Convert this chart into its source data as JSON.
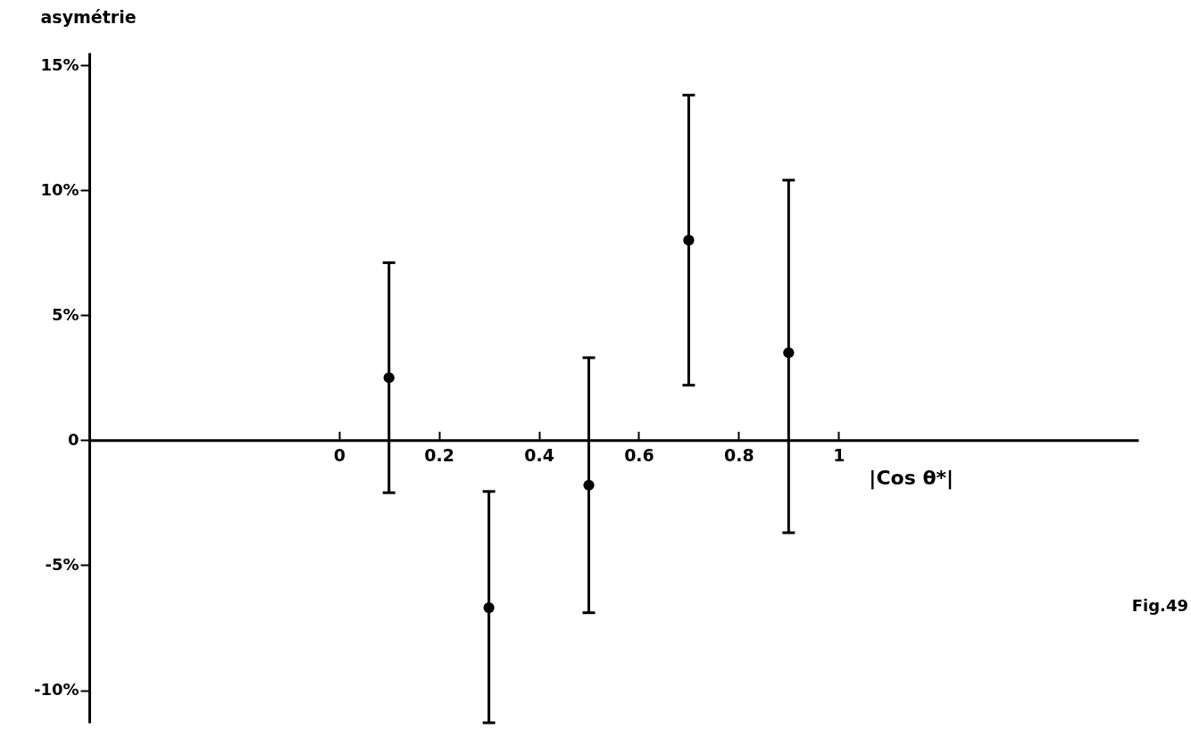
{
  "chart_data": {
    "type": "scatter",
    "xlabel": "|Cos θ*|",
    "ylabel": "asymétrie",
    "x": [
      0.1,
      0.3,
      0.5,
      0.7,
      0.9
    ],
    "series": [
      {
        "color": "#000000",
        "values": [
          2.5,
          -6.7,
          -1.8,
          8.0,
          3.5
        ],
        "errors": [
          [
            -2.1,
            7.1
          ],
          [
            -11.3,
            -2.05
          ],
          [
            -6.9,
            3.3
          ],
          [
            2.2,
            13.8
          ],
          [
            -3.7,
            10.4
          ]
        ]
      }
    ],
    "marker": "circle",
    "xlim": [
      -0.5,
      1.6
    ],
    "xticks": [
      0,
      0.2,
      0.4,
      0.6,
      0.8,
      1
    ],
    "ylim": [
      -11.3,
      15.5
    ],
    "yticks": [
      {
        "value": 15,
        "label": "15%"
      },
      {
        "value": 10,
        "label": "10%"
      },
      {
        "value": 5,
        "label": "5%"
      },
      0,
      {
        "value": -5,
        "label": "-5%"
      },
      {
        "value": -10,
        "label": "-10%"
      }
    ],
    "annotations": [
      "Fig.49"
    ]
  }
}
